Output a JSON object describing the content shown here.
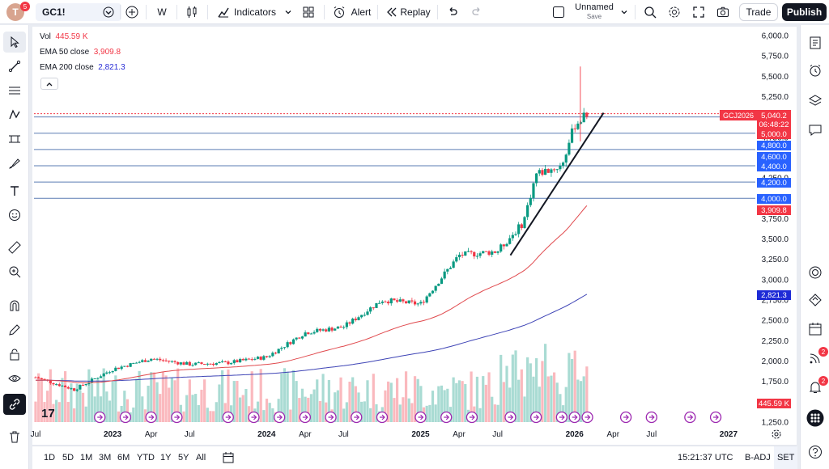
{
  "header": {
    "avatar_letter": "T",
    "avatar_badge": "5",
    "symbol": "GC1!",
    "interval": "W",
    "indicators_label": "Indicators",
    "alert_label": "Alert",
    "replay_label": "Replay",
    "layout_name": "Unnamed",
    "layout_save": "Save",
    "trade_label": "Trade",
    "publish_label": "Publish"
  },
  "legend": {
    "vol_label": "Vol",
    "vol_value": "445.59 K",
    "ema50_label": "EMA 50 close",
    "ema50_value": "3,909.8",
    "ema200_label": "EMA 200 close",
    "ema200_value": "2,821.3"
  },
  "price_axis": {
    "ticks": [
      "6,000.0",
      "5,750.0",
      "5,500.0",
      "5,250.0",
      "5,000.0",
      "4,750.0",
      "4,500.0",
      "4,250.0",
      "4,000.0",
      "3,750.0",
      "3,500.0",
      "3,250.0",
      "3,000.0",
      "2,750.0",
      "2,500.0",
      "2,250.0",
      "2,000.0",
      "1,750.0",
      "1,500.0",
      "1,250.0"
    ],
    "tick_values": [
      6000,
      5750,
      5500,
      5250,
      5000,
      4750,
      4500,
      4250,
      4000,
      3750,
      3500,
      3250,
      3000,
      2750,
      2500,
      2250,
      2000,
      1750,
      1500,
      1250
    ],
    "symbol_tag": "GCJ2026",
    "last_price": "5,040.2",
    "countdown": "06:48:22",
    "level_labels": [
      "5,000.0",
      "4,800.0",
      "4,600.0",
      "4,400.0",
      "4,200.0",
      "4,000.0"
    ],
    "ema50_label": "3,909.8",
    "ema200_label": "2,821.3",
    "vol_label": "445.59 K",
    "colors": {
      "last": "#f23645",
      "level": "#2962ff",
      "ema50": "#f23645",
      "ema200": "#1e2bd6",
      "vol": "#f23645"
    }
  },
  "chart_data": {
    "type": "candlestick",
    "symbol": "GC1!",
    "interval": "W",
    "ylim": [
      1250,
      6000
    ],
    "horizontal_levels": [
      5040.2,
      5000,
      4800,
      4600,
      4400,
      4200,
      4000
    ],
    "trendline": {
      "from": [
        "2025-08",
        3300
      ],
      "to": [
        "2026-02",
        5050
      ]
    },
    "ema50_last": 3909.8,
    "ema200_last": 2821.3,
    "volume_last": "445.59 K",
    "x_axis_labels": [
      "Jul",
      "2023",
      "Apr",
      "Jul",
      "2024",
      "Apr",
      "Jul",
      "2025",
      "Apr",
      "Jul",
      "2026",
      "Apr",
      "Jul",
      "2027"
    ],
    "price_path": [
      [
        "2022-07",
        1800
      ],
      [
        "2022-10",
        1650
      ],
      [
        "2023-01",
        1900
      ],
      [
        "2023-04",
        2030
      ],
      [
        "2023-07",
        1960
      ],
      [
        "2023-10",
        1980
      ],
      [
        "2024-01",
        2050
      ],
      [
        "2024-04",
        2350
      ],
      [
        "2024-07",
        2420
      ],
      [
        "2024-10",
        2750
      ],
      [
        "2025-01",
        2700
      ],
      [
        "2025-04",
        3300
      ],
      [
        "2025-07",
        3350
      ],
      [
        "2025-09",
        3700
      ],
      [
        "2025-10",
        4300
      ],
      [
        "2025-12",
        4400
      ],
      [
        "2026-01",
        4900
      ],
      [
        "2026-02",
        5040
      ]
    ],
    "colors": {
      "up": "#089981",
      "down": "#f23645",
      "ema50": "#e0494d",
      "ema200": "#3d43b5",
      "trend": "#131722"
    }
  },
  "bottom": {
    "ranges": [
      "1D",
      "5D",
      "1M",
      "3M",
      "6M",
      "YTD",
      "1Y",
      "5Y",
      "All"
    ],
    "time": "15:21:37 UTC",
    "adj": "B-ADJ",
    "session": "SET"
  },
  "right_badges": {
    "hotlist": "2",
    "notifications": "2"
  }
}
